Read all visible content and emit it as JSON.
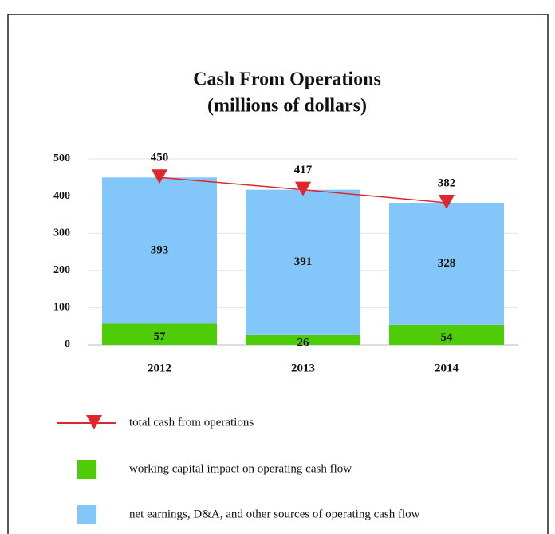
{
  "chart_data": {
    "type": "bar",
    "stacked": true,
    "title": "Cash From Operations",
    "subtitle": "(millions of dollars)",
    "categories": [
      "2012",
      "2013",
      "2014"
    ],
    "series": [
      {
        "name": "working capital impact on operating cash flow",
        "color": "#4fcc08",
        "values": [
          57,
          26,
          54
        ]
      },
      {
        "name": "net earnings, D&A, and other sources of operating cash flow",
        "color": "#82c6fa",
        "values": [
          393,
          391,
          328
        ]
      },
      {
        "name": "total cash from operations",
        "type": "line",
        "color": "#e0262b",
        "values": [
          450,
          417,
          382
        ]
      }
    ],
    "ylim": [
      0,
      500
    ],
    "yticks": [
      0,
      100,
      200,
      300,
      400,
      500
    ],
    "grid": true,
    "legend": "bottom"
  }
}
